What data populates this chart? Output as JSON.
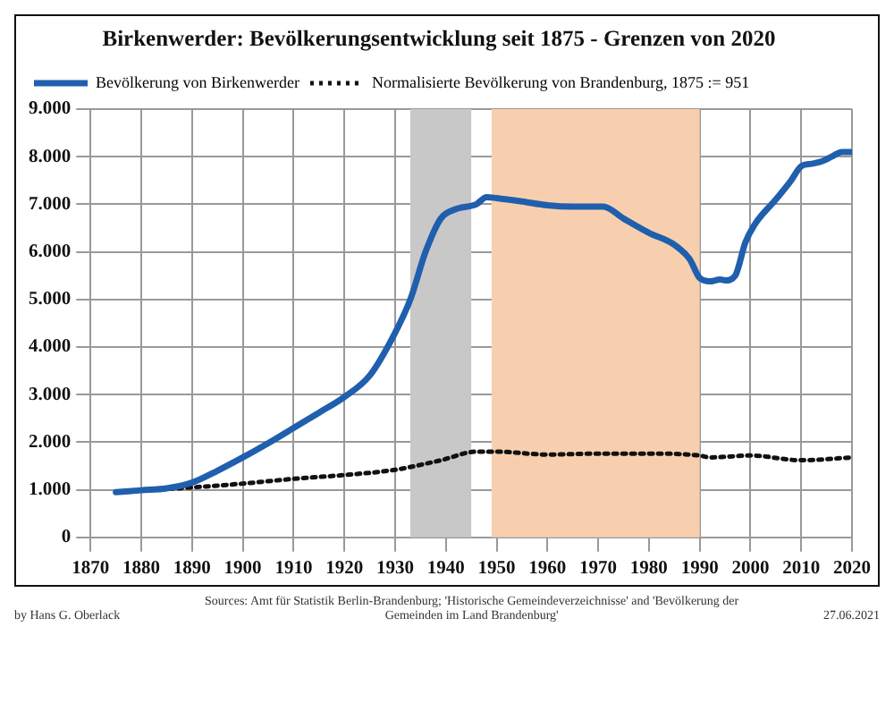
{
  "chart_data": {
    "type": "line",
    "title": "Birkenwerder: Bevölkerungsentwicklung seit 1875 - Grenzen von 2020",
    "series": [
      {
        "name": "Bevölkerung von Birkenwerder",
        "color": "#1f5fad",
        "line_style": "solid",
        "x": [
          1875,
          1880,
          1885,
          1890,
          1895,
          1900,
          1905,
          1910,
          1915,
          1920,
          1925,
          1930,
          1933,
          1936,
          1939,
          1942,
          1946,
          1948,
          1950,
          1955,
          1960,
          1965,
          1971,
          1975,
          1980,
          1985,
          1988,
          1990,
          1992,
          1994,
          1995,
          1997,
          1999,
          2001,
          2005,
          2008,
          2010,
          2012,
          2014,
          2016,
          2018,
          2020
        ],
        "values": [
          950,
          990,
          1030,
          1150,
          1400,
          1680,
          1980,
          2300,
          2620,
          2950,
          3400,
          4300,
          5000,
          6000,
          6700,
          6900,
          7000,
          7150,
          7130,
          7060,
          6980,
          6950,
          6950,
          6700,
          6400,
          6150,
          5850,
          5450,
          5380,
          5420,
          5400,
          5500,
          6200,
          6600,
          7100,
          7500,
          7800,
          7850,
          7900,
          8000,
          8100,
          8100
        ]
      },
      {
        "name": "Normalisierte Bevölkerung von Brandenburg, 1875 := 951",
        "color": "#111111",
        "line_style": "dotted",
        "x": [
          1875,
          1890,
          1900,
          1910,
          1920,
          1930,
          1939,
          1946,
          1950,
          1960,
          1970,
          1980,
          1990,
          1992,
          2000,
          2010,
          2020
        ],
        "values": [
          950,
          1050,
          1130,
          1230,
          1310,
          1420,
          1620,
          1800,
          1800,
          1740,
          1760,
          1760,
          1720,
          1680,
          1720,
          1620,
          1680
        ]
      }
    ],
    "xlim": [
      1870,
      2020
    ],
    "xticks": [
      1870,
      1880,
      1890,
      1900,
      1910,
      1920,
      1930,
      1940,
      1950,
      1960,
      1970,
      1980,
      1990,
      2000,
      2010,
      2020
    ],
    "ylim": [
      0,
      9000
    ],
    "yticks": [
      0,
      {
        "value": 1000,
        "label": "1.000"
      },
      {
        "value": 2000,
        "label": "2.000"
      },
      {
        "value": 3000,
        "label": "3.000"
      },
      {
        "value": 4000,
        "label": "4.000"
      },
      {
        "value": 5000,
        "label": "5.000"
      },
      {
        "value": 6000,
        "label": "6.000"
      },
      {
        "value": 7000,
        "label": "7.000"
      },
      {
        "value": 8000,
        "label": "8.000"
      },
      {
        "value": 9000,
        "label": "9.000"
      }
    ],
    "bands": [
      {
        "axis": "x",
        "from": 1933,
        "to": 1945,
        "color": "#c8c8c8"
      },
      {
        "axis": "x",
        "from": 1949,
        "to": 1990,
        "color": "#f8cfae"
      }
    ],
    "grid": true,
    "legend": "top left",
    "marker": "none",
    "annotations": [
      "Sources: Amt für Statistik Berlin-Brandenburg; 'Historische Gemeindeverzeichnisse' and 'Bevölkerung der Gemeinden im Land Brandenburg'",
      "by Hans G. Oberlack",
      "27.06.2021"
    ]
  }
}
